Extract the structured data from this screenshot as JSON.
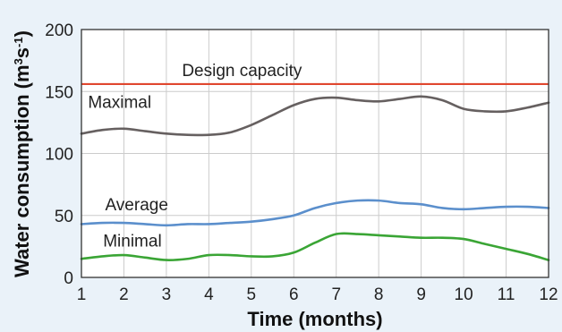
{
  "chart_data": {
    "type": "line",
    "xlabel": "Time (months)",
    "ylabel_main": "Water consumption (m",
    "ylabel_sup1": "3",
    "ylabel_mid": "s",
    "ylabel_sup2": "-1",
    "ylabel_end": ")",
    "xlim": [
      1,
      12
    ],
    "ylim": [
      0,
      200
    ],
    "xticks": [
      1,
      2,
      3,
      4,
      5,
      6,
      7,
      8,
      9,
      10,
      11,
      12
    ],
    "yticks": [
      0,
      50,
      100,
      150,
      200
    ],
    "grid": true,
    "annotation": {
      "label": "Design capacity",
      "y": 156,
      "color": "#e0472f"
    },
    "series": [
      {
        "name": "Maximal",
        "color": "#666060",
        "x": [
          1,
          1.5,
          2,
          2.5,
          3,
          3.5,
          4,
          4.5,
          5,
          5.5,
          6,
          6.5,
          7,
          7.5,
          8,
          8.5,
          9,
          9.5,
          10,
          10.5,
          11,
          11.5,
          12
        ],
        "y": [
          116,
          119,
          120,
          118,
          116,
          115,
          115,
          117,
          123,
          131,
          139,
          144,
          145,
          143,
          142,
          144,
          146,
          143,
          136,
          134,
          134,
          137,
          141
        ]
      },
      {
        "name": "Average",
        "color": "#5b8fcc",
        "x": [
          1,
          1.5,
          2,
          2.5,
          3,
          3.5,
          4,
          4.5,
          5,
          5.5,
          6,
          6.5,
          7,
          7.5,
          8,
          8.5,
          9,
          9.5,
          10,
          10.5,
          11,
          11.5,
          12
        ],
        "y": [
          43,
          44,
          44,
          43,
          42,
          43,
          43,
          44,
          45,
          47,
          50,
          56,
          60,
          62,
          62,
          60,
          59,
          56,
          55,
          56,
          57,
          57,
          56
        ]
      },
      {
        "name": "Minimal",
        "color": "#3aa535",
        "x": [
          1,
          1.5,
          2,
          2.5,
          3,
          3.5,
          4,
          4.5,
          5,
          5.5,
          6,
          6.5,
          7,
          7.5,
          8,
          8.5,
          9,
          9.5,
          10,
          10.5,
          11,
          11.5,
          12
        ],
        "y": [
          15,
          17,
          18,
          16,
          14,
          15,
          18,
          18,
          17,
          17,
          20,
          28,
          35,
          35,
          34,
          33,
          32,
          32,
          31,
          27,
          23,
          19,
          14
        ]
      }
    ]
  }
}
